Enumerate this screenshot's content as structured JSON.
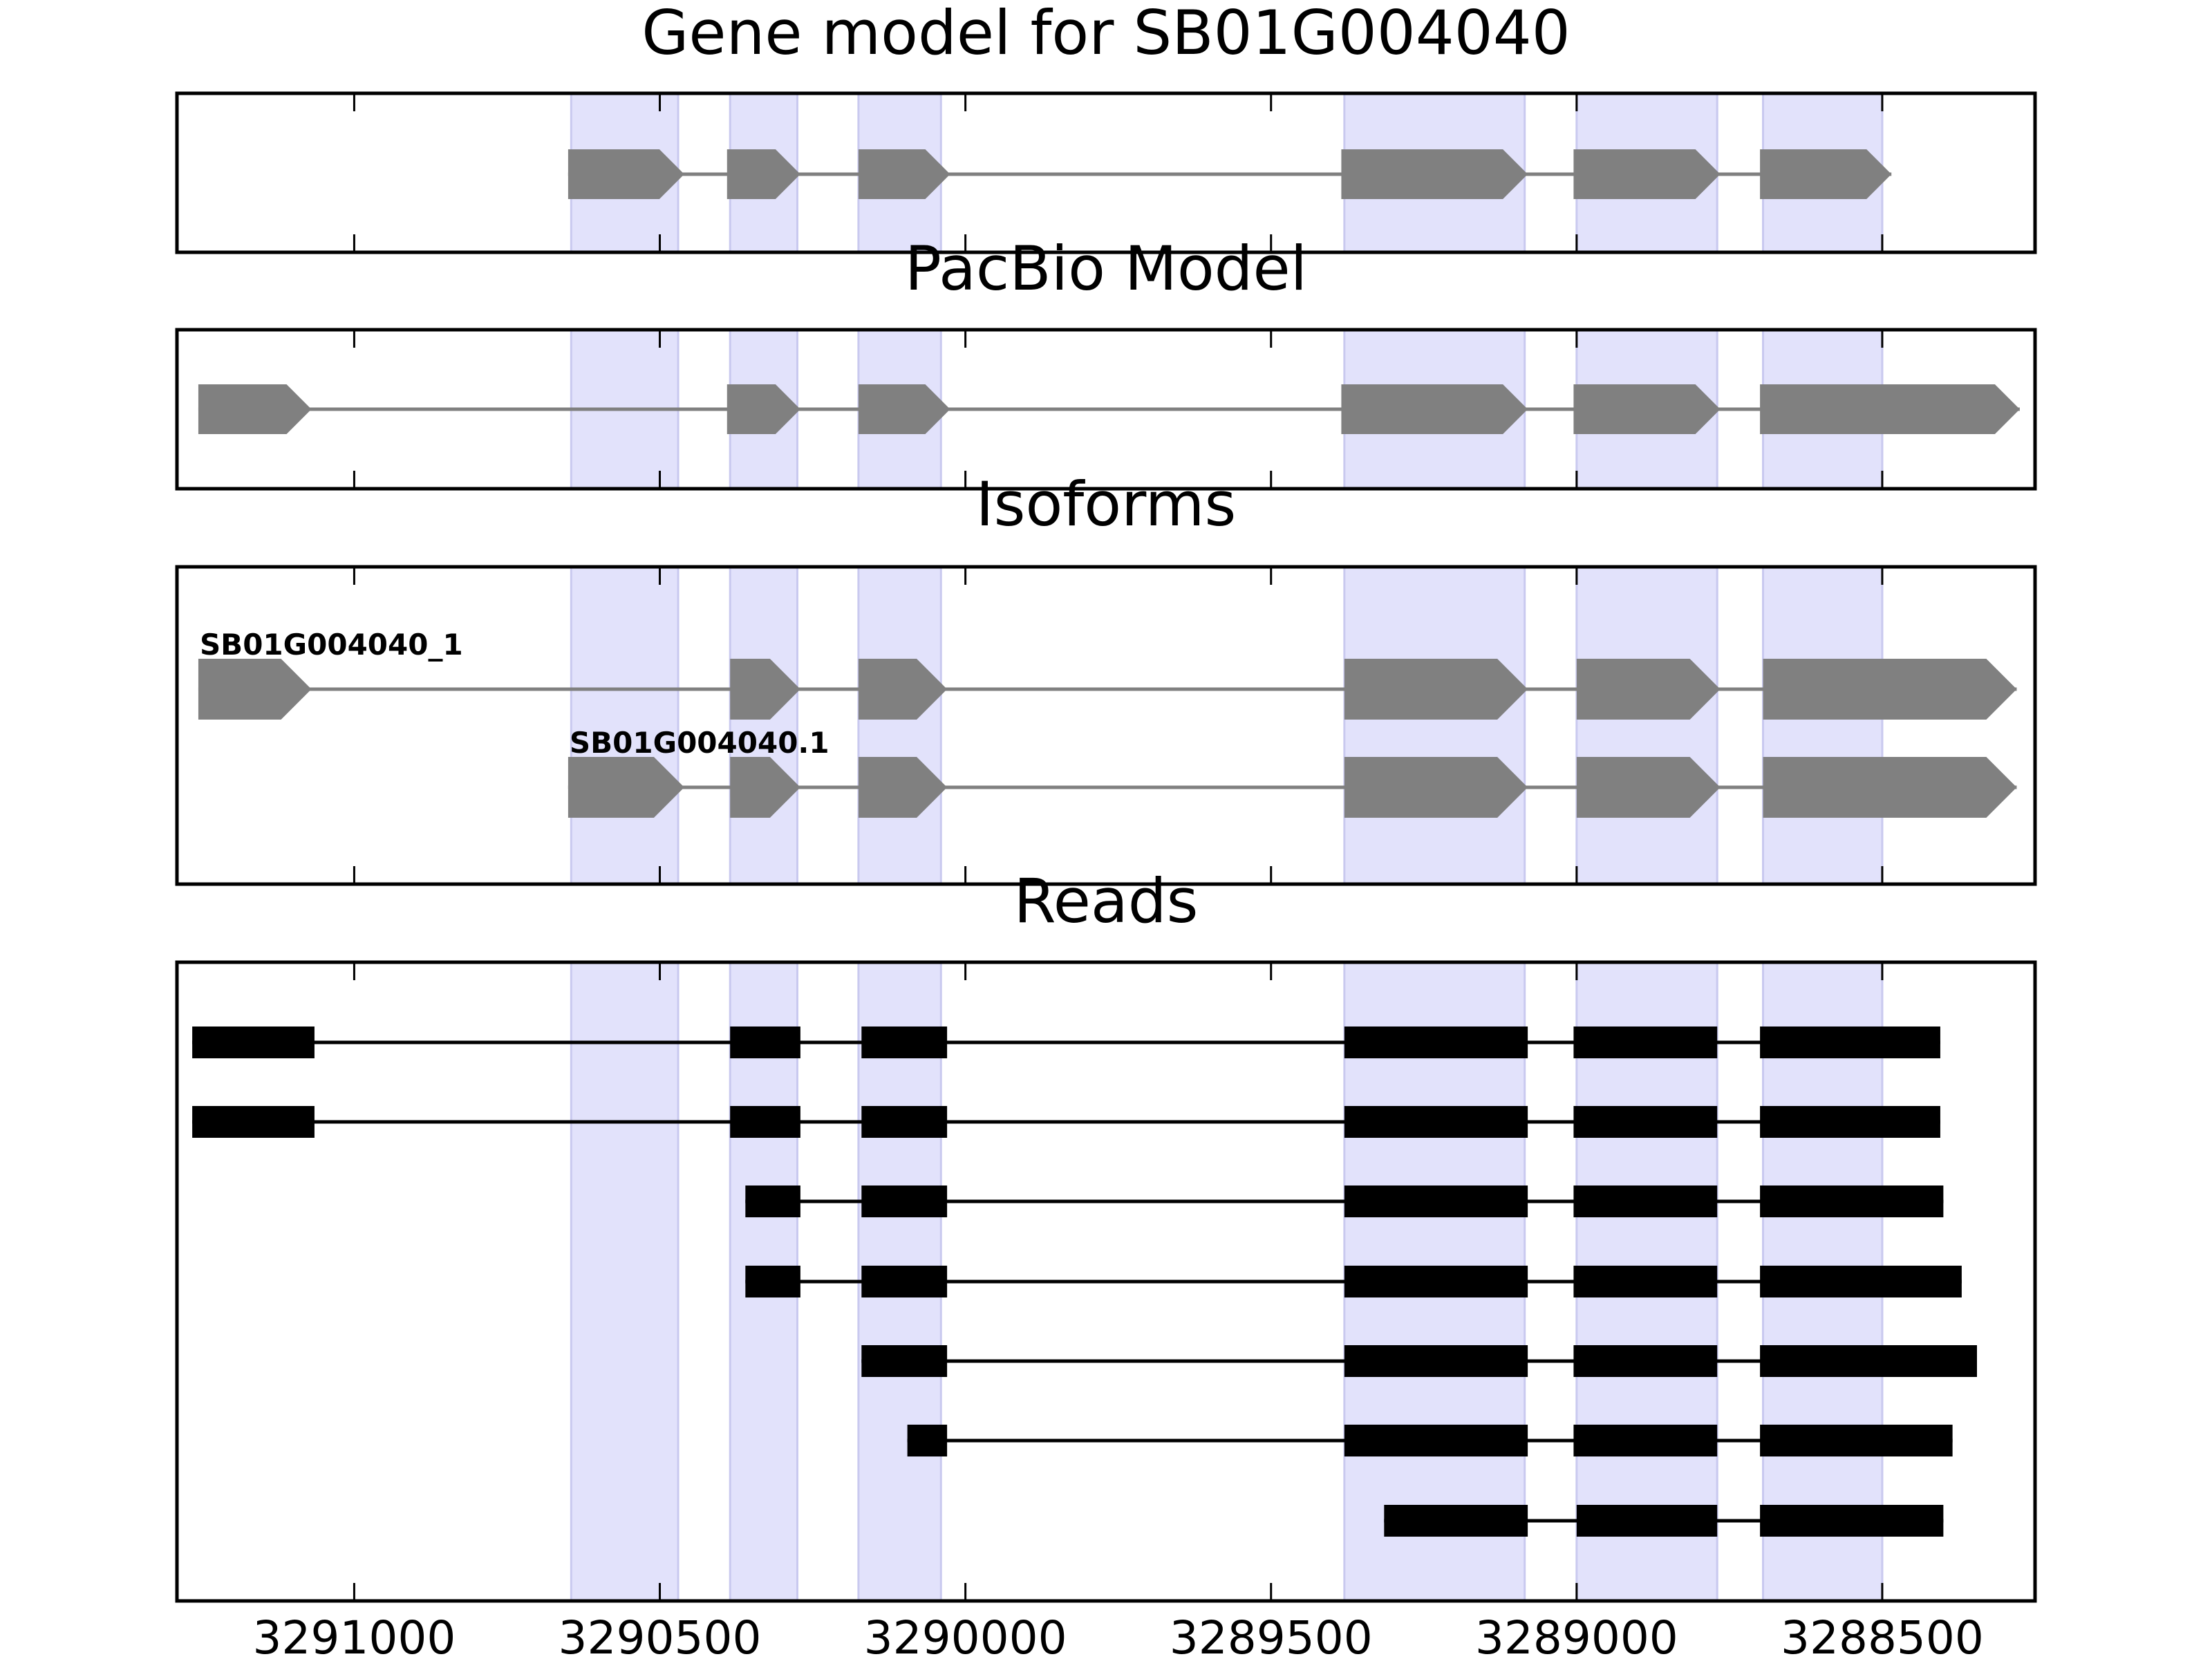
{
  "chart_data": {
    "type": "gene-track",
    "x_axis": {
      "reversed": true,
      "range": [
        3291290,
        3288250
      ],
      "ticks": [
        3291000,
        3290500,
        3290000,
        3289500,
        3289000,
        3288500
      ],
      "tick_labels": [
        "3291000",
        "3290500",
        "3290000",
        "3289500",
        "3289000",
        "3288500"
      ]
    },
    "highlight_exons": [
      [
        3290645,
        3290470
      ],
      [
        3290385,
        3290275
      ],
      [
        3290175,
        3290040
      ],
      [
        3289380,
        3289085
      ],
      [
        3289000,
        3288770
      ],
      [
        3288695,
        3288500
      ]
    ],
    "colors": {
      "highlight": "#e2e2fb",
      "gene_feature": "#808080",
      "read": "#000000",
      "frame": "#000000"
    },
    "panels": [
      {
        "id": "gene-model",
        "title": "Gene model for SB01G004040",
        "tracks": [
          {
            "exons": [
              [
                3290650,
                3290460
              ],
              [
                3290390,
                3290270
              ],
              [
                3290175,
                3290025
              ],
              [
                3289385,
                3289080
              ],
              [
                3289005,
                3288765
              ],
              [
                3288700,
                3288485
              ]
            ]
          }
        ]
      },
      {
        "id": "pacbio-model",
        "title": "PacBio Model",
        "tracks": [
          {
            "exons": [
              [
                3291255,
                3291070
              ],
              [
                3290390,
                3290270
              ],
              [
                3290175,
                3290025
              ],
              [
                3289385,
                3289080
              ],
              [
                3289005,
                3288765
              ],
              [
                3288700,
                3288275
              ]
            ]
          }
        ]
      },
      {
        "id": "isoforms",
        "title": "Isoforms",
        "tracks": [
          {
            "label": "SB01G004040_1",
            "exons": [
              [
                3291255,
                3291070
              ],
              [
                3290385,
                3290270
              ],
              [
                3290175,
                3290030
              ],
              [
                3289380,
                3289080
              ],
              [
                3289000,
                3288765
              ],
              [
                3288695,
                3288280
              ]
            ]
          },
          {
            "label": "SB01G004040.1",
            "exons": [
              [
                3290650,
                3290460
              ],
              [
                3290385,
                3290270
              ],
              [
                3290175,
                3290030
              ],
              [
                3289380,
                3289080
              ],
              [
                3289000,
                3288765
              ],
              [
                3288695,
                3288280
              ]
            ]
          }
        ]
      },
      {
        "id": "reads",
        "title": "Reads",
        "tracks": [
          {
            "exons": [
              [
                3291265,
                3291065
              ],
              [
                3290385,
                3290270
              ],
              [
                3290170,
                3290030
              ],
              [
                3289380,
                3289080
              ],
              [
                3289005,
                3288770
              ],
              [
                3288700,
                3288405
              ]
            ]
          },
          {
            "exons": [
              [
                3291265,
                3291065
              ],
              [
                3290385,
                3290270
              ],
              [
                3290170,
                3290030
              ],
              [
                3289380,
                3289080
              ],
              [
                3289005,
                3288770
              ],
              [
                3288700,
                3288405
              ]
            ]
          },
          {
            "exons": [
              [
                3290360,
                3290270
              ],
              [
                3290170,
                3290030
              ],
              [
                3289380,
                3289080
              ],
              [
                3289005,
                3288770
              ],
              [
                3288700,
                3288400
              ]
            ]
          },
          {
            "exons": [
              [
                3290360,
                3290270
              ],
              [
                3290170,
                3290030
              ],
              [
                3289380,
                3289080
              ],
              [
                3289005,
                3288770
              ],
              [
                3288700,
                3288370
              ]
            ]
          },
          {
            "exons": [
              [
                3290170,
                3290030
              ],
              [
                3289380,
                3289080
              ],
              [
                3289005,
                3288770
              ],
              [
                3288700,
                3288345
              ]
            ]
          },
          {
            "exons": [
              [
                3290095,
                3290030
              ],
              [
                3289380,
                3289080
              ],
              [
                3289005,
                3288770
              ],
              [
                3288700,
                3288385
              ]
            ]
          },
          {
            "exons": [
              [
                3289315,
                3289080
              ],
              [
                3289000,
                3288770
              ],
              [
                3288700,
                3288400
              ]
            ]
          }
        ]
      }
    ]
  }
}
